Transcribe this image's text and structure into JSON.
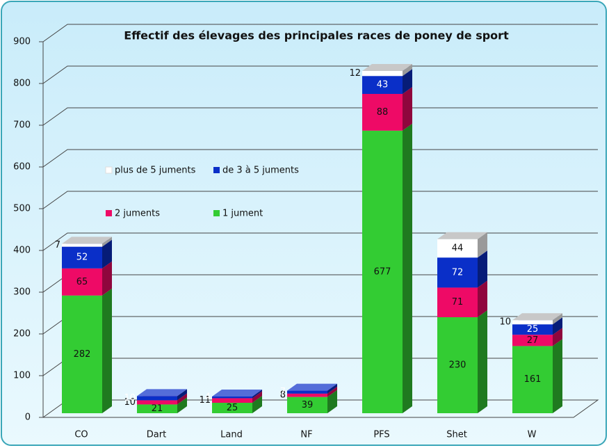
{
  "chart_data": {
    "type": "bar",
    "title": "Effectif des élevages des principales races de poney de sport",
    "categories": [
      "CO",
      "Dart",
      "Land",
      "NF",
      "PFS",
      "Shet",
      "W"
    ],
    "series": [
      {
        "name": "1 jument",
        "color": "#33cc33",
        "values": [
          282,
          21,
          25,
          39,
          677,
          230,
          161
        ]
      },
      {
        "name": "2 juments",
        "color": "#ee0a66",
        "values": [
          65,
          10,
          11,
          8,
          88,
          71,
          27
        ]
      },
      {
        "name": "de 3 à 5 juments",
        "color": "#0a2fc8",
        "values": [
          52,
          10,
          4,
          7,
          43,
          72,
          25
        ]
      },
      {
        "name": "plus de 5 juments",
        "color": "#ffffff",
        "values": [
          7,
          null,
          null,
          null,
          12,
          44,
          10
        ]
      }
    ],
    "ylim": [
      0,
      900
    ],
    "yticks": [
      0,
      100,
      200,
      300,
      400,
      500,
      600,
      700,
      800,
      900
    ],
    "grid": true,
    "stacked": true
  }
}
